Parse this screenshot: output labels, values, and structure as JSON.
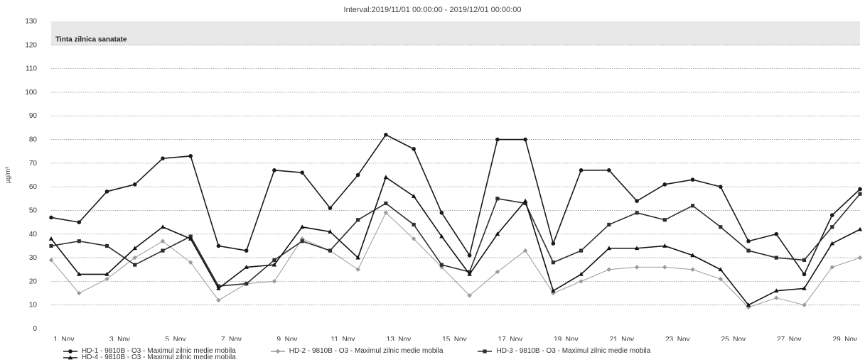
{
  "chart_data": {
    "type": "line",
    "title": "Interval:2019/11/01 00:00:00 - 2019/12/01 00:00:00",
    "ylabel": "µg/m³",
    "ylim": [
      0,
      130
    ],
    "yticks": [
      0,
      10,
      20,
      30,
      40,
      50,
      60,
      70,
      80,
      90,
      100,
      110,
      120,
      130
    ],
    "x": [
      1,
      2,
      3,
      4,
      5,
      6,
      7,
      8,
      9,
      10,
      11,
      12,
      13,
      14,
      15,
      16,
      17,
      18,
      19,
      20,
      21,
      22,
      23,
      24,
      25,
      26,
      27,
      28,
      29,
      30
    ],
    "xtick_labels": [
      "1. Nov",
      "3. Nov",
      "5. Nov",
      "7. Nov",
      "9. Nov",
      "11. Nov",
      "13. Nov",
      "15. Nov",
      "17. Nov",
      "19. Nov",
      "21. Nov",
      "23. Nov",
      "25. Nov",
      "27. Nov",
      "29. Nov"
    ],
    "band": {
      "from": 120,
      "to": 130,
      "label": "Tinta zilnica sanatate",
      "color": "#e8e8e8"
    },
    "grid": true,
    "legend_position": "bottom",
    "series": [
      {
        "name": "HD-1 - 9810B - O3 - Maximul zilnic medie mobila",
        "color": "#1a1a1a",
        "marker": "circle",
        "values": [
          47,
          45,
          58,
          61,
          72,
          73,
          35,
          33,
          67,
          66,
          51,
          65,
          82,
          76,
          49,
          31,
          80,
          80,
          36,
          67,
          67,
          54,
          61,
          63,
          60,
          37,
          40,
          23,
          48,
          59
        ]
      },
      {
        "name": "HD-2 - 9810B - O3 - Maximul zilnic medie mobila",
        "color": "#9a9a9a",
        "marker": "diamond",
        "values": [
          29,
          15,
          21,
          30,
          37,
          28,
          12,
          19,
          20,
          38,
          33,
          25,
          49,
          38,
          26,
          14,
          24,
          33,
          15,
          20,
          25,
          26,
          26,
          25,
          21,
          9,
          13,
          10,
          26,
          30
        ]
      },
      {
        "name": "HD-3 - 9810B - O3 - Maximul zilnic medie mobila",
        "color": "#2e2e2e",
        "marker": "square",
        "values": [
          35,
          37,
          35,
          27,
          33,
          39,
          18,
          19,
          29,
          37,
          33,
          46,
          53,
          44,
          27,
          24,
          55,
          53,
          28,
          33,
          44,
          49,
          46,
          52,
          43,
          33,
          30,
          29,
          43,
          57
        ]
      },
      {
        "name": "HD-4 - 9810B - O3 - Maximul zilnic medie mobila",
        "color": "#111111",
        "marker": "triangle",
        "values": [
          38,
          23,
          23,
          34,
          43,
          38,
          17,
          26,
          27,
          43,
          41,
          30,
          64,
          56,
          39,
          23,
          40,
          54,
          16,
          23,
          34,
          34,
          35,
          31,
          25,
          10,
          16,
          17,
          36,
          42
        ]
      }
    ]
  }
}
